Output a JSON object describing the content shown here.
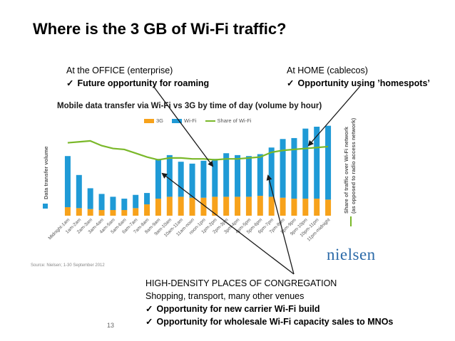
{
  "slide": {
    "title": "Where is the 3 GB of Wi-Fi traffic?",
    "page_number": "13",
    "source": "Source: Nielsen; 1-30 September 2012",
    "logo_text": "nielsen"
  },
  "callouts": {
    "office": {
      "line1": "At the OFFICE (enterprise)",
      "line2": "Future opportunity for roaming"
    },
    "home": {
      "line1": "At HOME (cablecos)",
      "line2": "Opportunity using ’homespots’"
    },
    "congregation": {
      "line1": "HIGH-DENSITY PLACES OF CONGREGATION",
      "line2": "Shopping, transport, many other venues",
      "line3": "Opportunity for new carrier Wi-Fi build",
      "line4": "Opportunity for wholesale Wi-Fi capacity sales to MNOs"
    },
    "check_glyph": "✓"
  },
  "colors": {
    "wifi": "#1f9ad6",
    "g3": "#f7a21b",
    "share": "#7ab829",
    "arrow": "#1a1a1a",
    "logo": "#2b6aa8"
  },
  "chart_data": {
    "type": "bar",
    "title": "Mobile data transfer via Wi-Fi vs 3G by time of day (volume by hour)",
    "ylabel": "Data transfer volume",
    "y2label_line1": "Share of traffic over Wi-Fi network",
    "y2label_line2": "(as opposed to radio access network)",
    "stacked": true,
    "ylim": [
      0,
      100
    ],
    "y2lim": [
      0,
      100
    ],
    "categories": [
      "Midnight-1am",
      "1am-2am",
      "2am-3am",
      "3am-4am",
      "4am-5am",
      "5am-6am",
      "6am-7am",
      "7am-8am",
      "8am-9am",
      "9am-10am",
      "10am-11am",
      "11am-noon",
      "noon-1pm",
      "1pm-2pm",
      "2pm-3pm",
      "3pm-4pm",
      "4pm-5pm",
      "5pm-6pm",
      "6pm-7pm",
      "7pm-8pm",
      "8pm-9pm",
      "9pm-10pm",
      "10pm-11pm",
      "11pm-midnight"
    ],
    "series": [
      {
        "name": "3G",
        "color": "#f7a21b",
        "values": [
          9,
          8,
          7,
          6,
          6,
          6,
          8,
          12,
          18,
          20,
          20,
          19,
          19,
          20,
          20,
          20,
          20,
          21,
          20,
          19,
          18,
          18,
          18,
          17
        ]
      },
      {
        "name": "Wi-Fi",
        "color": "#1f9ad6",
        "values": [
          54,
          35,
          22,
          17,
          14,
          12,
          14,
          12,
          42,
          44,
          37,
          36,
          39,
          40,
          46,
          44,
          43,
          44,
          52,
          62,
          64,
          74,
          76,
          78
        ]
      },
      {
        "name": "Share of Wi-Fi",
        "color": "#7ab829",
        "type": "line",
        "axis": "secondary",
        "values": [
          77,
          78,
          79,
          74,
          71,
          70,
          66,
          62,
          59,
          61,
          61,
          60,
          60,
          59,
          60,
          60,
          61,
          62,
          67,
          69,
          70,
          71,
          72,
          73
        ]
      }
    ]
  }
}
